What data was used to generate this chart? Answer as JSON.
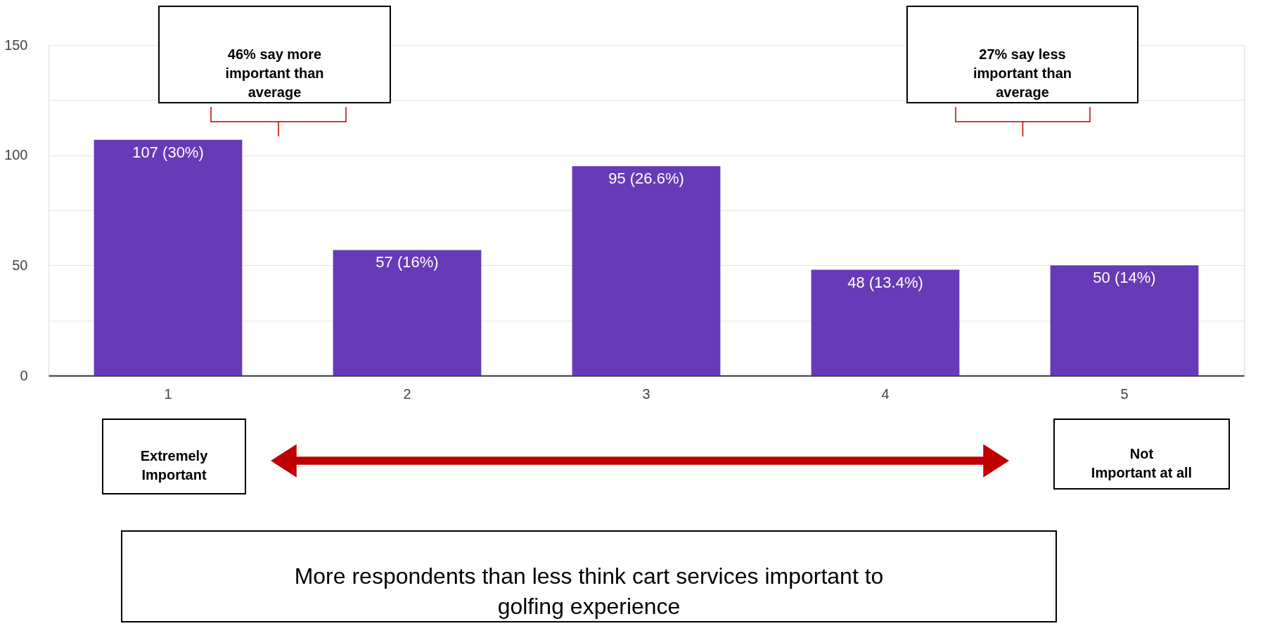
{
  "chart_data": {
    "type": "bar",
    "categories": [
      "1",
      "2",
      "3",
      "4",
      "5"
    ],
    "values": [
      107,
      57,
      95,
      48,
      50
    ],
    "value_labels": [
      "107 (30%)",
      "57 (16%)",
      "95 (26.6%)",
      "48 (13.4%)",
      "50 (14%)"
    ],
    "color": "#673ab7",
    "ylim": [
      0,
      150
    ],
    "yticks": [
      0,
      {
        "value": 25,
        "label": null
      },
      50,
      {
        "value": 75,
        "label": null
      },
      100,
      {
        "value": 125,
        "label": null
      },
      150
    ],
    "grid": true,
    "annotations": [
      "46% say more\nimportant than\naverage",
      "27% say less\nimportant than\naverage",
      "Extremely\nImportant",
      "Not\nImportant at all",
      "More respondents than less think cart services important to\ngolfing experience"
    ]
  }
}
